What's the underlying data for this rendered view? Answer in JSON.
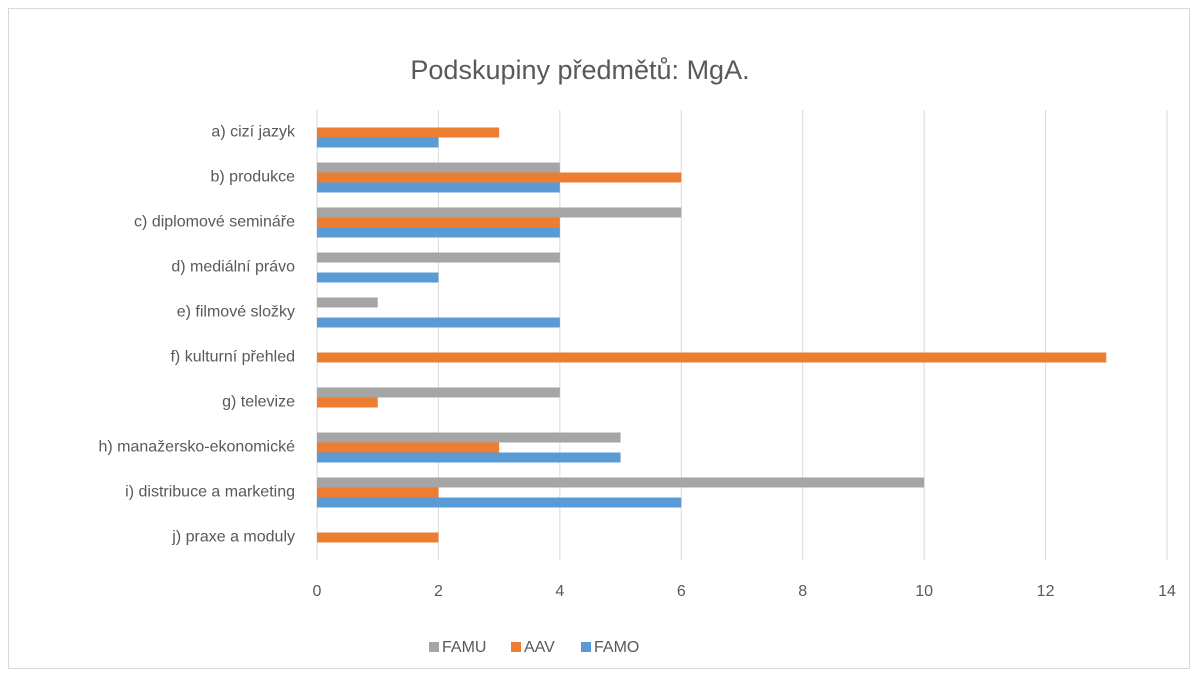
{
  "chart_data": {
    "type": "barh",
    "title": "Podskupiny předmětů: MgA.",
    "categories": [
      "a) cizí jazyk",
      "b) produkce",
      "c) diplomové semináře",
      "d) mediální právo",
      "e) filmové složky",
      "f) kulturní přehled",
      "g) televize",
      "h) manažersko-ekonomické",
      "i) distribuce a marketing",
      "j) praxe a moduly"
    ],
    "series": [
      {
        "name": "FAMU",
        "color": "#a5a5a5",
        "values": [
          0,
          4,
          6,
          4,
          1,
          0,
          4,
          5,
          10,
          0
        ]
      },
      {
        "name": "AAV",
        "color": "#ed7d31",
        "values": [
          3,
          6,
          4,
          0,
          0,
          13,
          1,
          3,
          2,
          2
        ]
      },
      {
        "name": "FAMO",
        "color": "#5b9bd5",
        "values": [
          2,
          4,
          4,
          2,
          4,
          0,
          0,
          5,
          6,
          0
        ]
      }
    ],
    "xlim": [
      0,
      14
    ],
    "xticks": [
      0,
      2,
      4,
      6,
      8,
      10,
      12,
      14
    ],
    "grid": true,
    "legend": "bottom"
  }
}
